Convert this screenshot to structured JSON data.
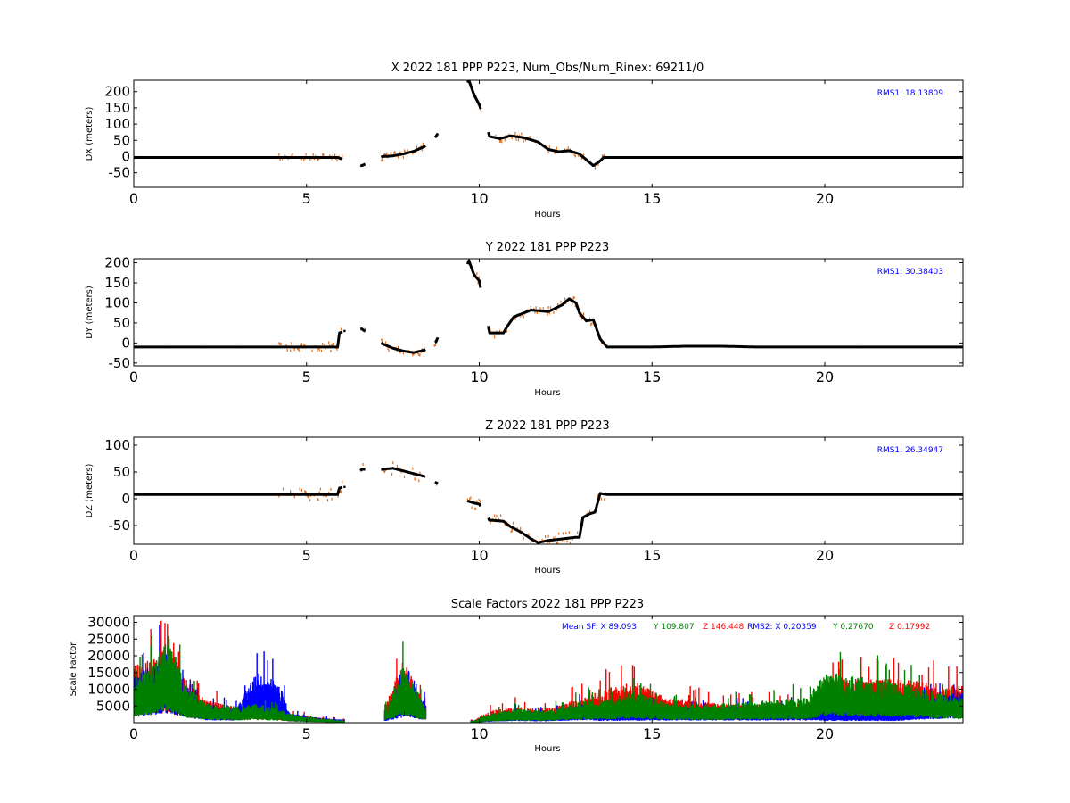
{
  "chart_data": [
    {
      "type": "scatter",
      "title": "X 2022 181 PPP  P223, Num_Obs/Num_Rinex: 69211/0",
      "xlabel": "Hours",
      "ylabel": "DX (meters)",
      "xlim": [
        0,
        24
      ],
      "ylim": [
        -95,
        235
      ],
      "xticks": [
        0,
        5,
        10,
        15,
        20
      ],
      "yticks": [
        -50,
        0,
        50,
        100,
        150,
        200
      ],
      "annotation": "RMS1: 18.13809",
      "colors": {
        "solution": "#000000",
        "sigma": "#e07020",
        "annotation": "#0000ff"
      },
      "series": [
        {
          "values": [
            [
              0,
              -3
            ],
            [
              1,
              -3
            ],
            [
              2,
              -3
            ],
            [
              3,
              -3
            ],
            [
              4,
              -3
            ],
            [
              4.5,
              -3
            ],
            [
              5,
              -3
            ],
            [
              5.5,
              -3
            ],
            [
              5.9,
              -3
            ],
            [
              6.6,
              -28
            ],
            [
              7.2,
              0
            ],
            [
              7.5,
              2
            ],
            [
              7.8,
              8
            ],
            [
              8.1,
              16
            ],
            [
              8.4,
              30
            ],
            [
              8.75,
              62
            ],
            [
              9.7,
              235
            ],
            [
              9.85,
              190
            ],
            [
              10.0,
              160
            ],
            [
              10.3,
              62
            ],
            [
              10.6,
              55
            ],
            [
              10.9,
              64
            ],
            [
              11.3,
              58
            ],
            [
              11.7,
              45
            ],
            [
              12.0,
              22
            ],
            [
              12.3,
              15
            ],
            [
              12.6,
              18
            ],
            [
              12.9,
              8
            ],
            [
              13.1,
              -10
            ],
            [
              13.3,
              -28
            ],
            [
              13.45,
              -18
            ],
            [
              13.6,
              -3
            ],
            [
              15,
              -3
            ],
            [
              18,
              -3
            ],
            [
              21,
              -3
            ],
            [
              24,
              -3
            ]
          ]
        }
      ]
    },
    {
      "type": "scatter",
      "title": "Y 2022 181 PPP  P223",
      "xlabel": "Hours",
      "ylabel": "DY (meters)",
      "xlim": [
        0,
        24
      ],
      "ylim": [
        -57,
        210
      ],
      "xticks": [
        0,
        5,
        10,
        15,
        20
      ],
      "yticks": [
        -50,
        0,
        50,
        100,
        150,
        200
      ],
      "annotation": "RMS1: 30.38403",
      "colors": {
        "solution": "#000000",
        "sigma": "#e07020",
        "annotation": "#0000ff"
      },
      "series": [
        {
          "values": [
            [
              0,
              -10
            ],
            [
              1,
              -10
            ],
            [
              2,
              -10
            ],
            [
              3,
              -10
            ],
            [
              4,
              -10
            ],
            [
              4.5,
              -10
            ],
            [
              5,
              -10
            ],
            [
              5.5,
              -10
            ],
            [
              5.9,
              -10
            ],
            [
              5.95,
              25
            ],
            [
              6.1,
              30
            ],
            [
              6.6,
              35
            ],
            [
              7.2,
              -2
            ],
            [
              7.5,
              -13
            ],
            [
              7.8,
              -20
            ],
            [
              8.1,
              -24
            ],
            [
              8.4,
              -18
            ],
            [
              8.75,
              3
            ],
            [
              9.7,
              205
            ],
            [
              9.85,
              170
            ],
            [
              10.0,
              155
            ],
            [
              10.3,
              25
            ],
            [
              10.7,
              25
            ],
            [
              10.8,
              40
            ],
            [
              11.0,
              65
            ],
            [
              11.5,
              82
            ],
            [
              12.0,
              78
            ],
            [
              12.4,
              95
            ],
            [
              12.6,
              110
            ],
            [
              12.8,
              100
            ],
            [
              12.9,
              75
            ],
            [
              13.1,
              55
            ],
            [
              13.3,
              58
            ],
            [
              13.5,
              10
            ],
            [
              13.7,
              -10
            ],
            [
              15,
              -10
            ],
            [
              16,
              -8
            ],
            [
              17,
              -8
            ],
            [
              18,
              -10
            ],
            [
              21,
              -10
            ],
            [
              24,
              -10
            ]
          ]
        }
      ]
    },
    {
      "type": "scatter",
      "title": "Z 2022 181 PPP  P223",
      "xlabel": "Hours",
      "ylabel": "DZ (meters)",
      "xlim": [
        0,
        24
      ],
      "ylim": [
        -85,
        115
      ],
      "xticks": [
        0,
        5,
        10,
        15,
        20
      ],
      "yticks": [
        -50,
        0,
        50,
        100
      ],
      "annotation": "RMS1: 26.34947",
      "colors": {
        "solution": "#000000",
        "sigma": "#e07020",
        "annotation": "#0000ff"
      },
      "series": [
        {
          "values": [
            [
              0,
              8
            ],
            [
              1,
              8
            ],
            [
              2,
              8
            ],
            [
              3,
              8
            ],
            [
              4,
              8
            ],
            [
              4.5,
              8
            ],
            [
              5,
              8
            ],
            [
              5.5,
              8
            ],
            [
              5.9,
              8
            ],
            [
              5.95,
              20
            ],
            [
              6.1,
              22
            ],
            [
              6.6,
              55
            ],
            [
              7.2,
              55
            ],
            [
              7.5,
              57
            ],
            [
              7.8,
              52
            ],
            [
              8.1,
              47
            ],
            [
              8.4,
              42
            ],
            [
              8.75,
              30
            ],
            [
              9.7,
              -5
            ],
            [
              9.85,
              -8
            ],
            [
              10.0,
              -10
            ],
            [
              10.3,
              -40
            ],
            [
              10.7,
              -42
            ],
            [
              10.9,
              -52
            ],
            [
              11.2,
              -62
            ],
            [
              11.5,
              -75
            ],
            [
              11.7,
              -82
            ],
            [
              12.0,
              -78
            ],
            [
              12.4,
              -75
            ],
            [
              12.8,
              -72
            ],
            [
              12.9,
              -72
            ],
            [
              13.0,
              -35
            ],
            [
              13.2,
              -28
            ],
            [
              13.35,
              -25
            ],
            [
              13.5,
              10
            ],
            [
              13.7,
              8
            ],
            [
              15,
              8
            ],
            [
              18,
              8
            ],
            [
              21,
              8
            ],
            [
              24,
              8
            ]
          ]
        }
      ]
    },
    {
      "type": "scatter",
      "title": "Scale Factors 2022 181 PPP  P223",
      "xlabel": "Hours",
      "ylabel": "Scale Factor",
      "xlim": [
        0,
        24
      ],
      "ylim": [
        0,
        32000
      ],
      "xticks": [
        0,
        5,
        10,
        15,
        20
      ],
      "yticks": [
        5000,
        10000,
        15000,
        20000,
        25000,
        30000
      ],
      "legend_text": [
        {
          "text": "Mean SF: X  89.093",
          "color": "#0000ff"
        },
        {
          "text": "Y 109.807",
          "color": "#008000"
        },
        {
          "text": "Z 146.448",
          "color": "#ff0000"
        },
        {
          "text": "RMS2: X  0.20359",
          "color": "#0000ff"
        },
        {
          "text": "Y  0.27670",
          "color": "#008000"
        },
        {
          "text": "Z  0.17992",
          "color": "#ff0000"
        }
      ],
      "series": [
        {
          "name": "X",
          "color": "#0000ff",
          "values": [
            [
              0,
              8000
            ],
            [
              0.5,
              9000
            ],
            [
              1,
              11000
            ],
            [
              1.5,
              6000
            ],
            [
              2,
              3000
            ],
            [
              2.5,
              2500
            ],
            [
              3,
              2500
            ],
            [
              3.5,
              8000
            ],
            [
              4,
              7000
            ],
            [
              4.3,
              5000
            ],
            [
              4.5,
              1500
            ],
            [
              5,
              1000
            ],
            [
              6,
              500
            ],
            [
              7.3,
              2000
            ],
            [
              7.8,
              6000
            ],
            [
              8.4,
              3500
            ],
            [
              9.8,
              300
            ],
            [
              10.4,
              1200
            ],
            [
              11,
              1800
            ],
            [
              12,
              1500
            ],
            [
              13,
              3000
            ],
            [
              13.5,
              2000
            ],
            [
              15,
              2500
            ],
            [
              17,
              2500
            ],
            [
              19.5,
              2500
            ],
            [
              20,
              2000
            ],
            [
              22,
              2000
            ],
            [
              23.5,
              4500
            ],
            [
              24,
              5000
            ]
          ]
        },
        {
          "name": "Y",
          "color": "#008000",
          "values": [
            [
              0,
              6000
            ],
            [
              0.5,
              9000
            ],
            [
              1,
              14000
            ],
            [
              1.5,
              6000
            ],
            [
              2,
              3500
            ],
            [
              2.5,
              3000
            ],
            [
              3,
              2500
            ],
            [
              3.5,
              3000
            ],
            [
              4,
              2500
            ],
            [
              4.3,
              2000
            ],
            [
              4.5,
              1500
            ],
            [
              5,
              900
            ],
            [
              6,
              400
            ],
            [
              7.3,
              2500
            ],
            [
              7.8,
              9000
            ],
            [
              8.4,
              3000
            ],
            [
              9.8,
              300
            ],
            [
              10.4,
              1500
            ],
            [
              11,
              2200
            ],
            [
              12,
              2000
            ],
            [
              13,
              3500
            ],
            [
              13.5,
              3500
            ],
            [
              14.5,
              5000
            ],
            [
              15.5,
              3000
            ],
            [
              17,
              3000
            ],
            [
              19.5,
              4000
            ],
            [
              20,
              8000
            ],
            [
              22,
              6500
            ],
            [
              23.5,
              4500
            ],
            [
              24,
              4000
            ]
          ]
        },
        {
          "name": "Z",
          "color": "#ff0000",
          "values": [
            [
              0,
              9000
            ],
            [
              0.5,
              10000
            ],
            [
              1,
              12000
            ],
            [
              1.5,
              7000
            ],
            [
              2,
              4000
            ],
            [
              2.5,
              3000
            ],
            [
              3,
              2500
            ],
            [
              3.5,
              4000
            ],
            [
              4,
              3000
            ],
            [
              4.3,
              2500
            ],
            [
              4.5,
              1500
            ],
            [
              5,
              1000
            ],
            [
              6,
              500
            ],
            [
              7.3,
              3000
            ],
            [
              7.8,
              10000
            ],
            [
              8.4,
              3000
            ],
            [
              9.8,
              300
            ],
            [
              10.4,
              2000
            ],
            [
              11,
              2500
            ],
            [
              12,
              2300
            ],
            [
              13,
              4000
            ],
            [
              13.5,
              5000
            ],
            [
              14.5,
              6500
            ],
            [
              15.5,
              4000
            ],
            [
              17,
              3000
            ],
            [
              19.5,
              3000
            ],
            [
              20,
              7000
            ],
            [
              22,
              7000
            ],
            [
              23.5,
              6000
            ],
            [
              24,
              6000
            ]
          ]
        }
      ]
    }
  ]
}
